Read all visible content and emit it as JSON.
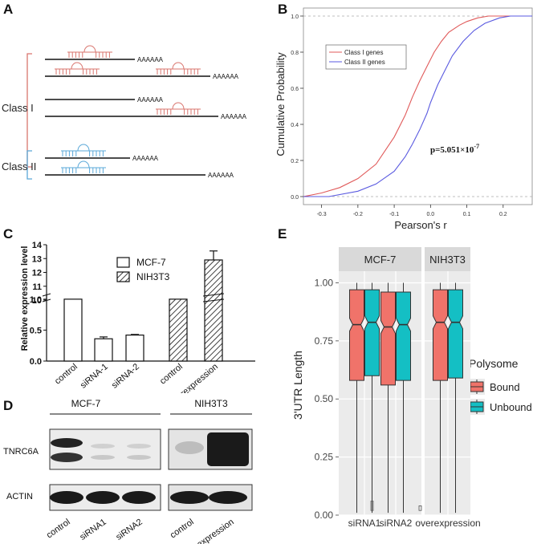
{
  "panels": {
    "a": {
      "label": "A",
      "class1_label": "Class I",
      "class2_label": "Class II",
      "polya": "AAAAAA",
      "colors": {
        "class1": "#d9756e",
        "class2": "#5aa8d8"
      }
    },
    "b": {
      "label": "B"
    },
    "c": {
      "label": "C"
    },
    "d": {
      "label": "D"
    },
    "e": {
      "label": "E"
    }
  },
  "chart_data": [
    {
      "panel": "B",
      "type": "line",
      "xlabel": "Pearson's r",
      "ylabel": "Cumulative Probability",
      "xlim": [
        -0.35,
        0.28
      ],
      "ylim": [
        0,
        1
      ],
      "xticks": [
        "-0.3",
        "-0.2",
        "-0.1",
        "0.0",
        "0.1",
        "0.2"
      ],
      "yticks": [
        "0.0",
        "0.2",
        "0.4",
        "0.6",
        "0.8",
        "1.0"
      ],
      "annotation": "p=5.051×10",
      "annotation_exp": "-7",
      "legend_position": "top-left",
      "series": [
        {
          "name": "Class I genes",
          "color": "#e05a5a",
          "x": [
            -0.35,
            -0.3,
            -0.25,
            -0.2,
            -0.15,
            -0.1,
            -0.07,
            -0.05,
            -0.03,
            -0.01,
            0.01,
            0.03,
            0.05,
            0.08,
            0.1,
            0.13,
            0.16,
            0.2,
            0.28
          ],
          "y": [
            0.0,
            0.02,
            0.05,
            0.1,
            0.18,
            0.33,
            0.45,
            0.55,
            0.64,
            0.72,
            0.8,
            0.86,
            0.91,
            0.95,
            0.97,
            0.99,
            1.0,
            1.0,
            1.0
          ]
        },
        {
          "name": "Class II genes",
          "color": "#5a5ae0",
          "x": [
            -0.35,
            -0.28,
            -0.2,
            -0.15,
            -0.1,
            -0.07,
            -0.05,
            -0.03,
            -0.01,
            0.0,
            0.02,
            0.04,
            0.06,
            0.09,
            0.12,
            0.15,
            0.19,
            0.22,
            0.28
          ],
          "y": [
            0.0,
            0.0,
            0.03,
            0.07,
            0.14,
            0.22,
            0.29,
            0.37,
            0.46,
            0.52,
            0.62,
            0.7,
            0.78,
            0.86,
            0.92,
            0.96,
            0.99,
            1.0,
            1.0
          ]
        }
      ]
    },
    {
      "panel": "C",
      "type": "bar",
      "ylabel": "Relative expression level",
      "yticks_lower": [
        "0.0",
        "0.5",
        "1.0"
      ],
      "yticks_upper": [
        "10",
        "11",
        "12",
        "13",
        "14"
      ],
      "categories": [
        "control",
        "siRNA-1",
        "siRNA-2",
        "control",
        "overexpression"
      ],
      "values": [
        1.0,
        0.36,
        0.42,
        1.0,
        12.9
      ],
      "errors": [
        0,
        0.03,
        0.01,
        0,
        0.65
      ],
      "groups": [
        "MCF-7",
        "MCF-7",
        "MCF-7",
        "NIH3T3",
        "NIH3T3"
      ],
      "legend": [
        "MCF-7",
        "NIH3T3"
      ]
    },
    {
      "panel": "E",
      "type": "box",
      "ylabel": "3'UTR Length",
      "yticks": [
        "0.00",
        "0.25",
        "0.50",
        "0.75",
        "1.00"
      ],
      "ylim": [
        0,
        1.05
      ],
      "facets": [
        "MCF-7",
        "NIH3T3"
      ],
      "categories": [
        "siRNA1",
        "siRNA2",
        "overexpression"
      ],
      "legend_title": "Polysome",
      "series": [
        {
          "name": "Bound",
          "color": "#f0736a",
          "boxes": [
            {
              "min": 0.01,
              "q1": 0.58,
              "median": 0.82,
              "q3": 0.97,
              "max": 1.0
            },
            {
              "min": 0.01,
              "q1": 0.56,
              "median": 0.81,
              "q3": 0.96,
              "max": 1.0
            },
            {
              "min": 0.01,
              "q1": 0.58,
              "median": 0.83,
              "q3": 0.97,
              "max": 1.0
            }
          ]
        },
        {
          "name": "Unbound",
          "color": "#14bfc4",
          "boxes": [
            {
              "min": 0.01,
              "q1": 0.6,
              "median": 0.83,
              "q3": 0.97,
              "max": 1.0
            },
            {
              "min": 0.01,
              "q1": 0.58,
              "median": 0.82,
              "q3": 0.96,
              "max": 1.0
            },
            {
              "min": 0.01,
              "q1": 0.59,
              "median": 0.83,
              "q3": 0.97,
              "max": 1.0
            }
          ]
        }
      ]
    }
  ],
  "western": {
    "cell_lines": [
      "MCF-7",
      "NIH3T3"
    ],
    "rows": [
      "TNRC6A",
      "ACTIN"
    ],
    "lanes": [
      "control",
      "siRNA1",
      "siRNA2",
      "control",
      "overexpression"
    ]
  }
}
